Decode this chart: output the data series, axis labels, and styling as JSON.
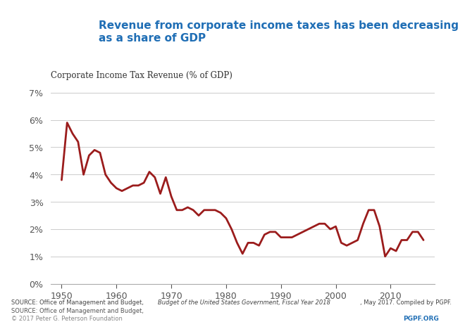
{
  "title_main": "Revenue from corporate income taxes has been decreasing\nas a share of GDP",
  "chart_title": "Corporate Income Tax Revenue (% of GDP)",
  "source_text": "SOURCE: Office of Management and Budget, Budget of the United States Government, Fiscal Year 2018, May 2017. Compiled by PGPF.",
  "copyright_text": "© 2017 Peter G. Peterson Foundation",
  "pgpf_text": "PGPF.ORG",
  "line_color": "#9b1c1c",
  "background_color": "#ffffff",
  "header_bg_color": "#ffffff",
  "title_color": "#1f6eb5",
  "chart_title_color": "#333333",
  "years": [
    1950,
    1951,
    1952,
    1953,
    1954,
    1955,
    1956,
    1957,
    1958,
    1959,
    1960,
    1961,
    1962,
    1963,
    1964,
    1965,
    1966,
    1967,
    1968,
    1969,
    1970,
    1971,
    1972,
    1973,
    1974,
    1975,
    1976,
    1977,
    1978,
    1979,
    1980,
    1981,
    1982,
    1983,
    1984,
    1985,
    1986,
    1987,
    1988,
    1989,
    1990,
    1991,
    1992,
    1993,
    1994,
    1995,
    1996,
    1997,
    1998,
    1999,
    2000,
    2001,
    2002,
    2003,
    2004,
    2005,
    2006,
    2007,
    2008,
    2009,
    2010,
    2011,
    2012,
    2013,
    2014,
    2015,
    2016
  ],
  "values": [
    3.8,
    5.9,
    5.5,
    5.2,
    4.0,
    4.7,
    4.9,
    4.8,
    4.0,
    3.7,
    3.5,
    3.4,
    3.5,
    3.6,
    3.6,
    3.7,
    4.1,
    3.9,
    3.3,
    3.9,
    3.2,
    2.7,
    2.7,
    2.8,
    2.7,
    2.5,
    2.7,
    2.7,
    2.7,
    2.6,
    2.4,
    2.0,
    1.5,
    1.1,
    1.5,
    1.5,
    1.4,
    1.8,
    1.9,
    1.9,
    1.7,
    1.7,
    1.7,
    1.8,
    1.9,
    2.0,
    2.1,
    2.2,
    2.2,
    2.0,
    2.1,
    1.5,
    1.4,
    1.5,
    1.6,
    2.2,
    2.7,
    2.7,
    2.1,
    1.0,
    1.3,
    1.2,
    1.6,
    1.6,
    1.9,
    1.9,
    1.6
  ],
  "xlim": [
    1948,
    2018
  ],
  "ylim": [
    0,
    7
  ],
  "yticks": [
    0,
    1,
    2,
    3,
    4,
    5,
    6,
    7
  ],
  "xticks": [
    1950,
    1960,
    1970,
    1980,
    1990,
    2000,
    2010
  ],
  "line_width": 2.0
}
